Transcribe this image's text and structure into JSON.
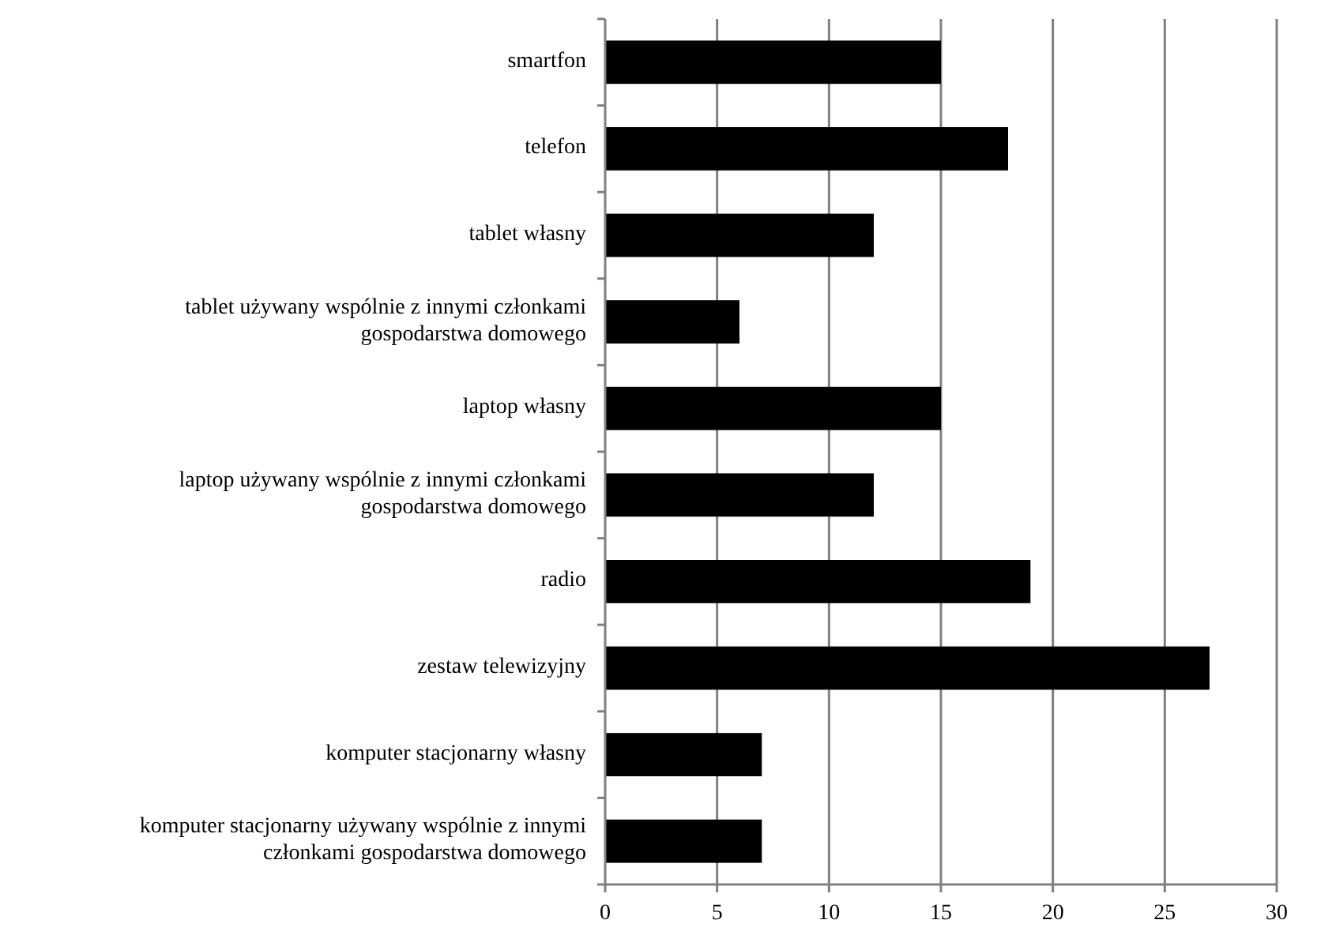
{
  "chart_data": {
    "type": "bar",
    "orientation": "horizontal",
    "categories": [
      "smartfon",
      "telefon",
      "tablet własny",
      "tablet używany wspólnie z innymi członkami gospodarstwa domowego",
      "laptop własny",
      "laptop używany wspólnie z innymi członkami gospodarstwa domowego",
      "radio",
      "zestaw telewizyjny",
      "komputer stacjonarny własny",
      "komputer stacjonarny używany wspólnie z innymi członkami gospodarstwa domowego"
    ],
    "values": [
      15,
      18,
      12,
      6,
      15,
      12,
      19,
      27,
      7,
      7
    ],
    "color": "#000000",
    "xlim": [
      0,
      30
    ],
    "xticks": [
      0,
      5,
      10,
      15,
      20,
      25,
      30
    ],
    "grid": "x"
  }
}
